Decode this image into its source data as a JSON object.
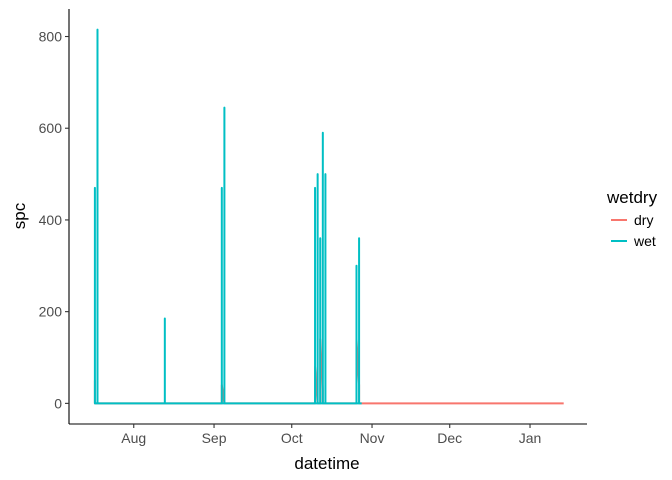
{
  "chart_data": {
    "type": "line",
    "xlabel": "datetime",
    "ylabel": "spc",
    "x_range": [
      "2023-07-07",
      "2024-01-23"
    ],
    "ylim": [
      -45,
      860
    ],
    "x_ticks": [
      {
        "date": "2023-08-01",
        "label": "Aug"
      },
      {
        "date": "2023-09-01",
        "label": "Sep"
      },
      {
        "date": "2023-10-01",
        "label": "Oct"
      },
      {
        "date": "2023-11-01",
        "label": "Nov"
      },
      {
        "date": "2023-12-01",
        "label": "Dec"
      },
      {
        "date": "2024-01-01",
        "label": "Jan"
      }
    ],
    "y_ticks": [
      0,
      200,
      400,
      600,
      800
    ],
    "grid": false,
    "legend": {
      "title": "wetdry",
      "position": "right"
    },
    "series": [
      {
        "name": "dry",
        "color": "#F8766D",
        "points": [
          [
            "2023-07-17",
            0
          ],
          [
            "2023-07-17",
            50
          ],
          [
            "2023-07-17",
            0
          ],
          [
            "2023-09-04",
            0
          ],
          [
            "2023-09-04",
            40
          ],
          [
            "2023-09-05",
            0
          ],
          [
            "2023-10-10",
            0
          ],
          [
            "2023-10-10",
            80
          ],
          [
            "2023-10-11",
            0
          ],
          [
            "2023-10-12",
            0
          ],
          [
            "2023-10-12",
            140
          ],
          [
            "2023-10-13",
            30
          ],
          [
            "2023-10-13",
            0
          ],
          [
            "2023-10-26",
            0
          ],
          [
            "2023-10-26",
            140
          ],
          [
            "2023-10-27",
            40
          ],
          [
            "2023-10-27",
            0
          ],
          [
            "2024-01-14",
            0
          ]
        ]
      },
      {
        "name": "wet",
        "color": "#00BFC4",
        "points": [
          [
            "2023-07-17",
            0
          ],
          [
            "2023-07-17",
            470
          ],
          [
            "2023-07-17",
            0
          ],
          [
            "2023-07-18",
            0
          ],
          [
            "2023-07-18",
            815
          ],
          [
            "2023-07-18",
            0
          ],
          [
            "2023-08-13",
            0
          ],
          [
            "2023-08-13",
            185
          ],
          [
            "2023-08-13",
            0
          ],
          [
            "2023-09-04",
            0
          ],
          [
            "2023-09-04",
            470
          ],
          [
            "2023-09-04",
            0
          ],
          [
            "2023-09-05",
            0
          ],
          [
            "2023-09-05",
            645
          ],
          [
            "2023-09-05",
            0
          ],
          [
            "2023-10-10",
            0
          ],
          [
            "2023-10-10",
            470
          ],
          [
            "2023-10-10",
            0
          ],
          [
            "2023-10-11",
            0
          ],
          [
            "2023-10-11",
            500
          ],
          [
            "2023-10-11",
            0
          ],
          [
            "2023-10-12",
            0
          ],
          [
            "2023-10-12",
            360
          ],
          [
            "2023-10-12",
            0
          ],
          [
            "2023-10-13",
            0
          ],
          [
            "2023-10-13",
            590
          ],
          [
            "2023-10-13",
            0
          ],
          [
            "2023-10-14",
            0
          ],
          [
            "2023-10-14",
            500
          ],
          [
            "2023-10-14",
            0
          ],
          [
            "2023-10-26",
            0
          ],
          [
            "2023-10-26",
            300
          ],
          [
            "2023-10-26",
            0
          ],
          [
            "2023-10-27",
            0
          ],
          [
            "2023-10-27",
            360
          ],
          [
            "2023-10-27",
            0
          ],
          [
            "2023-10-28",
            0
          ]
        ]
      }
    ]
  }
}
